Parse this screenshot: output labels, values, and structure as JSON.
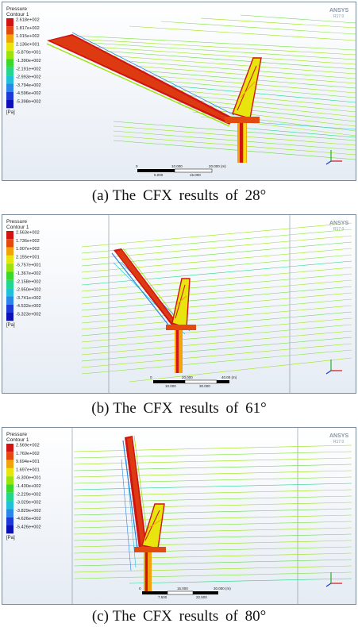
{
  "legend_title": "Pressure",
  "legend_subtitle": "Contour 1",
  "legend_unit": "[Pa]",
  "brand": "ANSYS",
  "brand_version": "R17.0",
  "palette": [
    "#d01414",
    "#e24a10",
    "#f2a20c",
    "#e8e40e",
    "#9be30c",
    "#38d82c",
    "#22d68e",
    "#20c0d8",
    "#2a86e8",
    "#1c3ad8",
    "#0c10b8"
  ],
  "panels": [
    {
      "id": "a",
      "legend_values": [
        "2.618e+002",
        "1.817e+002",
        "1.015e+002",
        "2.136e+001",
        "-5.879e+001",
        "-1.390e+002",
        "-2.191e+002",
        "-2.993e+002",
        "-3.794e+002",
        "-4.596e+002",
        "-5.398e+002"
      ],
      "scale_labels": [
        "0",
        "5.000",
        "10.000",
        "15.000",
        "20.000 (m)"
      ],
      "caption_prefix": "(a)",
      "caption_text": "The CFX results of 28°"
    },
    {
      "id": "b",
      "legend_values": [
        "2.563e+002",
        "1.736e+002",
        "1.007e+002",
        "2.155e+001",
        "-5.757e+001",
        "-1.367e+002",
        "-2.158e+002",
        "-2.950e+002",
        "-3.741e+002",
        "-4.532e+002",
        "-5.323e+002"
      ],
      "scale_labels": [
        "0",
        "20.000",
        "40.00 (m)",
        "10.000",
        "30.000"
      ],
      "caption_prefix": "(b)",
      "caption_text": "The CFX results of 61°"
    },
    {
      "id": "c",
      "legend_values": [
        "2.569e+002",
        "1.769e+002",
        "9.694e+001",
        "1.697e+001",
        "-6.300e+001",
        "-1.430e+002",
        "-2.229e+002",
        "-3.029e+002",
        "-3.829e+002",
        "-4.626e+002",
        "-5.426e+002"
      ],
      "scale_labels": [
        "0",
        "15.000",
        "30.000 (m)",
        "7.500",
        "22.500"
      ],
      "caption_prefix": "(c)",
      "caption_text": "The CFX results of 80°"
    }
  ]
}
